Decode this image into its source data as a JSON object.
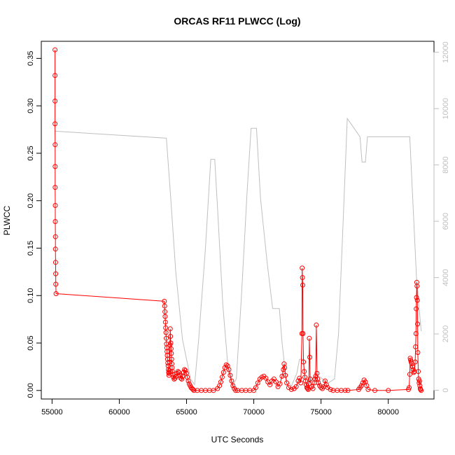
{
  "chart_data": {
    "type": "line",
    "title": "ORCAS RF11 PLWCC (Log)",
    "xlabel": "UTC Seconds",
    "ylabel": "PLWCC",
    "xlim": [
      54200,
      83400
    ],
    "ylim": [
      -0.009,
      0.368
    ],
    "y2lim": [
      -310,
      12390
    ],
    "x_ticks": [
      55000,
      60000,
      65000,
      70000,
      75000,
      80000
    ],
    "y_ticks": [
      0.0,
      0.05,
      0.1,
      0.15,
      0.2,
      0.25,
      0.3,
      0.35
    ],
    "y_tick_labels": [
      "0.00",
      "0.05",
      "0.10",
      "0.15",
      "0.20",
      "0.25",
      "0.30",
      "0.35"
    ],
    "y2_ticks": [
      0,
      2000,
      4000,
      6000,
      8000,
      10000,
      12000
    ],
    "grid": false,
    "series": [
      {
        "color": "#ff0000",
        "axis": "left",
        "style": "line+points",
        "points": [
          [
            55220,
            0.359
          ],
          [
            55220,
            0.332
          ],
          [
            55220,
            0.305
          ],
          [
            55220,
            0.281
          ],
          [
            55230,
            0.259
          ],
          [
            55230,
            0.236
          ],
          [
            55230,
            0.214
          ],
          [
            55240,
            0.195
          ],
          [
            55240,
            0.178
          ],
          [
            55250,
            0.162
          ],
          [
            55250,
            0.149
          ],
          [
            55260,
            0.135
          ],
          [
            55270,
            0.123
          ],
          [
            55280,
            0.112
          ],
          [
            55300,
            0.102
          ],
          [
            63350,
            0.094
          ],
          [
            63370,
            0.089
          ],
          [
            63390,
            0.083
          ],
          [
            63410,
            0.078
          ],
          [
            63430,
            0.072
          ],
          [
            63450,
            0.066
          ],
          [
            63470,
            0.061
          ],
          [
            63490,
            0.055
          ],
          [
            63510,
            0.049
          ],
          [
            63530,
            0.045
          ],
          [
            63550,
            0.041
          ],
          [
            63570,
            0.037
          ],
          [
            63590,
            0.033
          ],
          [
            63610,
            0.029
          ],
          [
            63630,
            0.026
          ],
          [
            63650,
            0.022
          ],
          [
            63670,
            0.019
          ],
          [
            63690,
            0.016
          ],
          [
            63710,
            0.018
          ],
          [
            63730,
            0.021
          ],
          [
            63750,
            0.03
          ],
          [
            63770,
            0.048
          ],
          [
            63790,
            0.065
          ],
          [
            63810,
            0.057
          ],
          [
            63830,
            0.05
          ],
          [
            63850,
            0.044
          ],
          [
            63870,
            0.039
          ],
          [
            63890,
            0.033
          ],
          [
            63910,
            0.028
          ],
          [
            63930,
            0.024
          ],
          [
            63950,
            0.02
          ],
          [
            63980,
            0.017
          ],
          [
            64020,
            0.014
          ],
          [
            64080,
            0.012
          ],
          [
            64150,
            0.013
          ],
          [
            64220,
            0.015
          ],
          [
            64290,
            0.018
          ],
          [
            64360,
            0.02
          ],
          [
            64430,
            0.019
          ],
          [
            64500,
            0.016
          ],
          [
            64570,
            0.013
          ],
          [
            64640,
            0.012
          ],
          [
            64710,
            0.015
          ],
          [
            64780,
            0.019
          ],
          [
            64850,
            0.022
          ],
          [
            64920,
            0.021
          ],
          [
            64990,
            0.018
          ],
          [
            65060,
            0.014
          ],
          [
            65130,
            0.01
          ],
          [
            65200,
            0.007
          ],
          [
            65270,
            0.005
          ],
          [
            65340,
            0.003
          ],
          [
            65410,
            0.002
          ],
          [
            65480,
            0.001
          ],
          [
            65550,
            0.0
          ],
          [
            65800,
            0.0
          ],
          [
            66100,
            0.0
          ],
          [
            66400,
            0.0
          ],
          [
            66700,
            0.0
          ],
          [
            67000,
            0.0
          ],
          [
            67300,
            0.002
          ],
          [
            67450,
            0.005
          ],
          [
            67550,
            0.009
          ],
          [
            67650,
            0.014
          ],
          [
            67750,
            0.019
          ],
          [
            67850,
            0.024
          ],
          [
            67950,
            0.027
          ],
          [
            68050,
            0.026
          ],
          [
            68150,
            0.022
          ],
          [
            68250,
            0.016
          ],
          [
            68350,
            0.01
          ],
          [
            68450,
            0.005
          ],
          [
            68550,
            0.002
          ],
          [
            68650,
            0.0
          ],
          [
            68800,
            0.0
          ],
          [
            69100,
            0.0
          ],
          [
            69400,
            0.0
          ],
          [
            69700,
            0.0
          ],
          [
            70000,
            0.0
          ],
          [
            70150,
            0.003
          ],
          [
            70300,
            0.008
          ],
          [
            70450,
            0.012
          ],
          [
            70600,
            0.014
          ],
          [
            70750,
            0.015
          ],
          [
            70900,
            0.013
          ],
          [
            71050,
            0.009
          ],
          [
            71200,
            0.006
          ],
          [
            71350,
            0.01
          ],
          [
            71500,
            0.012
          ],
          [
            71650,
            0.009
          ],
          [
            71800,
            0.004
          ],
          [
            71950,
            0.007
          ],
          [
            72100,
            0.015
          ],
          [
            72200,
            0.022
          ],
          [
            72250,
            0.028
          ],
          [
            72300,
            0.024
          ],
          [
            72350,
            0.016
          ],
          [
            72450,
            0.008
          ],
          [
            72600,
            0.003
          ],
          [
            72800,
            0.001
          ],
          [
            73000,
            0.002
          ],
          [
            73150,
            0.004
          ],
          [
            73300,
            0.01
          ],
          [
            73400,
            0.013
          ],
          [
            73500,
            0.008
          ],
          [
            73580,
            0.06
          ],
          [
            73600,
            0.129
          ],
          [
            73620,
            0.119
          ],
          [
            73640,
            0.111
          ],
          [
            73660,
            0.06
          ],
          [
            73700,
            0.03
          ],
          [
            73750,
            0.02
          ],
          [
            73800,
            0.014
          ],
          [
            73850,
            0.01
          ],
          [
            73900,
            0.006
          ],
          [
            73950,
            0.003
          ],
          [
            74000,
            0.002
          ],
          [
            74050,
            0.001
          ],
          [
            74100,
            0.007
          ],
          [
            74130,
            0.055
          ],
          [
            74160,
            0.035
          ],
          [
            74200,
            0.012
          ],
          [
            74300,
            0.004
          ],
          [
            74400,
            0.002
          ],
          [
            74500,
            0.008
          ],
          [
            74550,
            0.012
          ],
          [
            74600,
            0.015
          ],
          [
            74650,
            0.069
          ],
          [
            74700,
            0.018
          ],
          [
            74750,
            0.012
          ],
          [
            74800,
            0.008
          ],
          [
            74900,
            0.005
          ],
          [
            75000,
            0.003
          ],
          [
            75100,
            0.002
          ],
          [
            75200,
            0.004
          ],
          [
            75300,
            0.01
          ],
          [
            75400,
            0.006
          ],
          [
            75500,
            0.003
          ],
          [
            75700,
            0.001
          ],
          [
            75900,
            0.0
          ],
          [
            76200,
            0.0
          ],
          [
            76500,
            0.0
          ],
          [
            76800,
            0.0
          ],
          [
            77000,
            0.0
          ],
          [
            77800,
            0.001
          ],
          [
            77900,
            0.003
          ],
          [
            78000,
            0.005
          ],
          [
            78100,
            0.008
          ],
          [
            78200,
            0.011
          ],
          [
            78300,
            0.009
          ],
          [
            78400,
            0.005
          ],
          [
            78500,
            0.001
          ],
          [
            79000,
            0.0
          ],
          [
            80000,
            0.0
          ],
          [
            81500,
            0.001
          ],
          [
            81550,
            0.003
          ],
          [
            81600,
            0.017
          ],
          [
            81630,
            0.034
          ],
          [
            81660,
            0.032
          ],
          [
            81700,
            0.03
          ],
          [
            81750,
            0.028
          ],
          [
            81800,
            0.025
          ],
          [
            81850,
            0.022
          ],
          [
            81900,
            0.019
          ],
          [
            81950,
            0.02
          ],
          [
            82000,
            0.03
          ],
          [
            82030,
            0.046
          ],
          [
            82060,
            0.06
          ],
          [
            82080,
            0.086
          ],
          [
            82100,
            0.098
          ],
          [
            82120,
            0.114
          ],
          [
            82140,
            0.11
          ],
          [
            82160,
            0.095
          ],
          [
            82180,
            0.07
          ],
          [
            82200,
            0.04
          ],
          [
            82230,
            0.02
          ],
          [
            82260,
            0.012
          ],
          [
            82290,
            0.008
          ],
          [
            82320,
            0.01
          ],
          [
            82350,
            0.005
          ],
          [
            82380,
            0.002
          ],
          [
            82400,
            0.001
          ],
          [
            82450,
            0.0
          ]
        ]
      },
      {
        "color": "#bfbfbf",
        "axis": "right",
        "style": "line",
        "points": [
          [
            55220,
            9200
          ],
          [
            63500,
            8950
          ],
          [
            63800,
            7000
          ],
          [
            64200,
            4200
          ],
          [
            64700,
            1800
          ],
          [
            65300,
            400
          ],
          [
            65600,
            200
          ],
          [
            65900,
            1800
          ],
          [
            66400,
            5000
          ],
          [
            66800,
            8200
          ],
          [
            67100,
            8200
          ],
          [
            67300,
            6500
          ],
          [
            67700,
            3000
          ],
          [
            68100,
            700
          ],
          [
            68400,
            150
          ],
          [
            68700,
            400
          ],
          [
            69100,
            3500
          ],
          [
            69500,
            7000
          ],
          [
            69800,
            9300
          ],
          [
            70200,
            9300
          ],
          [
            70500,
            6800
          ],
          [
            71000,
            4500
          ],
          [
            71400,
            2900
          ],
          [
            71900,
            2900
          ],
          [
            72100,
            1700
          ],
          [
            72400,
            400
          ],
          [
            72800,
            150
          ],
          [
            73200,
            600
          ],
          [
            73400,
            1100
          ],
          [
            73700,
            1100
          ],
          [
            73800,
            400
          ],
          [
            74200,
            300
          ],
          [
            74600,
            550
          ],
          [
            75000,
            450
          ],
          [
            75500,
            250
          ],
          [
            76000,
            400
          ],
          [
            76300,
            2000
          ],
          [
            76600,
            5500
          ],
          [
            76950,
            9650
          ],
          [
            77900,
            9000
          ],
          [
            78050,
            8100
          ],
          [
            78300,
            8100
          ],
          [
            78450,
            9000
          ],
          [
            81600,
            9000
          ],
          [
            82100,
            4000
          ],
          [
            82450,
            2100
          ]
        ]
      }
    ]
  }
}
